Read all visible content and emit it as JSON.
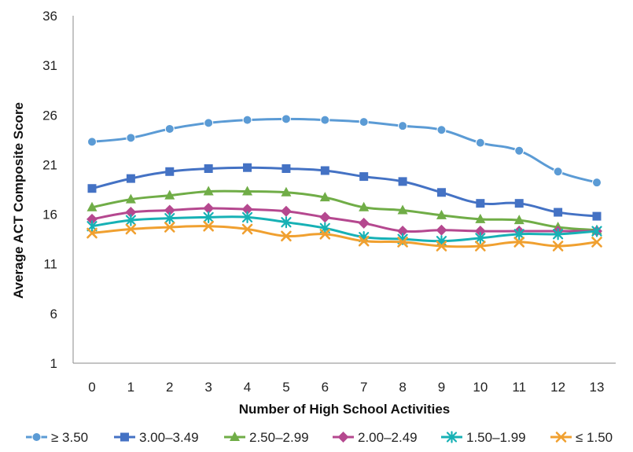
{
  "chart_data": {
    "type": "line",
    "xlabel": "Number of High School Activities",
    "ylabel": "Average ACT Composite Score",
    "x": [
      0,
      1,
      2,
      3,
      4,
      5,
      6,
      7,
      8,
      9,
      10,
      11,
      12,
      13
    ],
    "x_tick_labels": [
      "0",
      "1",
      "2",
      "3",
      "4",
      "5",
      "6",
      "7",
      "8",
      "9",
      "10",
      "11",
      "12",
      "13"
    ],
    "ylim": [
      1,
      36
    ],
    "y_ticks": [
      1,
      6,
      11,
      16,
      21,
      26,
      31,
      36
    ],
    "y_tick_labels": [
      "1",
      "6",
      "11",
      "16",
      "21",
      "26",
      "31",
      "36"
    ],
    "grid": false,
    "legend_position": "bottom",
    "series": [
      {
        "name": "≥ 3.50",
        "color": "#5b9bd5",
        "marker": "circle",
        "values": [
          23.3,
          23.7,
          24.6,
          25.2,
          25.5,
          25.6,
          25.5,
          25.3,
          24.9,
          24.5,
          23.2,
          22.4,
          20.3,
          19.2
        ]
      },
      {
        "name": "3.00–3.49",
        "color": "#4472c4",
        "marker": "square",
        "values": [
          18.6,
          19.6,
          20.3,
          20.6,
          20.7,
          20.6,
          20.4,
          19.8,
          19.3,
          18.2,
          17.1,
          17.1,
          16.2,
          15.8
        ]
      },
      {
        "name": "2.50–2.99",
        "color": "#70ad47",
        "marker": "triangle",
        "values": [
          16.7,
          17.5,
          17.9,
          18.3,
          18.3,
          18.2,
          17.7,
          16.7,
          16.4,
          15.9,
          15.5,
          15.4,
          14.7,
          14.4
        ]
      },
      {
        "name": "2.00–2.49",
        "color": "#b5488f",
        "marker": "diamond",
        "values": [
          15.5,
          16.2,
          16.4,
          16.6,
          16.5,
          16.3,
          15.7,
          15.1,
          14.3,
          14.4,
          14.3,
          14.3,
          14.3,
          14.3
        ]
      },
      {
        "name": "1.50–1.99",
        "color": "#17b1b5",
        "marker": "asterisk",
        "values": [
          14.8,
          15.4,
          15.6,
          15.7,
          15.7,
          15.2,
          14.6,
          13.7,
          13.5,
          13.3,
          13.6,
          14.0,
          14.0,
          14.3
        ]
      },
      {
        "name": "≤ 1.50",
        "color": "#f0a030",
        "marker": "x",
        "values": [
          14.1,
          14.5,
          14.7,
          14.8,
          14.5,
          13.8,
          14.0,
          13.3,
          13.2,
          12.8,
          12.8,
          13.2,
          12.8,
          13.2
        ]
      }
    ]
  }
}
